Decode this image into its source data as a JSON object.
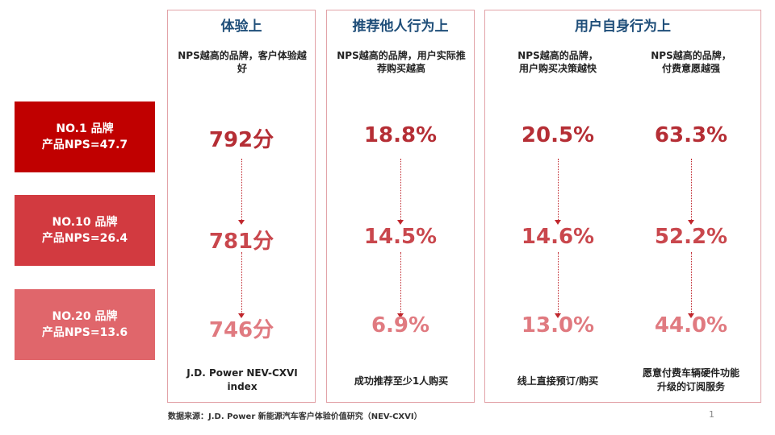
{
  "rows": [
    {
      "line1": "NO.1 品牌",
      "line2": "产品NPS=47.7",
      "color": "#c00000"
    },
    {
      "line1": "NO.10 品牌",
      "line2": "产品NPS=26.4",
      "color": "#d23a40"
    },
    {
      "line1": "NO.20 品牌",
      "line2": "产品NPS=13.6",
      "color": "#e0666b"
    }
  ],
  "panels": {
    "experience": {
      "title": "体验上",
      "desc": "NPS越高的品牌，客户体验越好",
      "values": [
        "792分",
        "781分",
        "746分"
      ],
      "footer": "J.D. Power NEV-CXVI index"
    },
    "recommend": {
      "title": "推荐他人行为上",
      "desc": "NPS越高的品牌，用户实际推荐购买越高",
      "values": [
        "18.8%",
        "14.5%",
        "6.9%"
      ],
      "footer": "成功推荐至少1人购买"
    },
    "self": {
      "title": "用户自身行为上",
      "columns": [
        {
          "desc_line1": "NPS越高的品牌，",
          "desc_line2": "用户购买决策越快",
          "values": [
            "20.5%",
            "14.6%",
            "13.0%"
          ],
          "footer": "线上直接预订/购买"
        },
        {
          "desc_line1": "NPS越高的品牌，",
          "desc_line2": "付费意愿越强",
          "values": [
            "63.3%",
            "52.2%",
            "44.0%"
          ],
          "footer": "愿意付费车辆硬件功能升级的订阅服务"
        }
      ]
    }
  },
  "source": "数据来源：J.D. Power 新能源汽车客户体验价值研究（NEV-CXVI）",
  "page_number": "1"
}
